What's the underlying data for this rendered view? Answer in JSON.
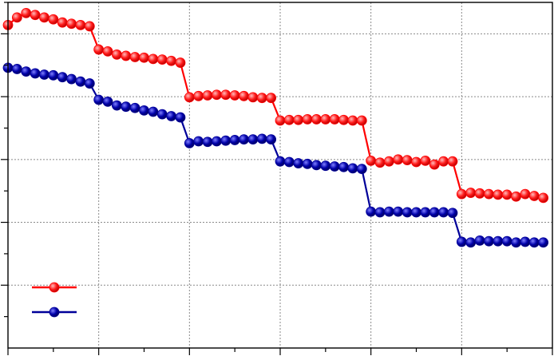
{
  "chart_data": {
    "type": "line",
    "title": "",
    "xlabel": "",
    "ylabel": "",
    "xlim": [
      0,
      60
    ],
    "ylim": [
      0,
      5.5
    ],
    "grid": true,
    "legend_position": "bottom-left",
    "x": [
      0,
      1,
      2,
      3,
      4,
      5,
      6,
      7,
      8,
      9,
      10,
      11,
      12,
      13,
      14,
      15,
      16,
      17,
      18,
      19,
      20,
      21,
      22,
      23,
      24,
      25,
      26,
      27,
      28,
      29,
      30,
      31,
      32,
      33,
      34,
      35,
      36,
      37,
      38,
      39,
      40,
      41,
      42,
      43,
      44,
      45,
      46,
      47,
      48,
      49,
      50,
      51,
      52,
      53,
      54,
      55,
      56,
      57,
      58,
      59
    ],
    "series": [
      {
        "name": "",
        "color": "#ff0000",
        "values": [
          5.14,
          5.26,
          5.33,
          5.3,
          5.26,
          5.23,
          5.18,
          5.16,
          5.14,
          5.12,
          4.75,
          4.72,
          4.67,
          4.65,
          4.63,
          4.62,
          4.6,
          4.59,
          4.57,
          4.54,
          3.99,
          4.01,
          4.02,
          4.03,
          4.03,
          4.02,
          4.01,
          3.99,
          3.98,
          3.98,
          3.62,
          3.63,
          3.63,
          3.64,
          3.64,
          3.64,
          3.64,
          3.63,
          3.62,
          3.62,
          2.98,
          2.95,
          2.97,
          3.0,
          2.99,
          2.96,
          2.98,
          2.92,
          2.97,
          2.97,
          2.45,
          2.47,
          2.46,
          2.45,
          2.44,
          2.44,
          2.41,
          2.45,
          2.42,
          2.39
        ]
      },
      {
        "name": "",
        "color": "#000099",
        "values": [
          4.46,
          4.44,
          4.4,
          4.37,
          4.35,
          4.34,
          4.31,
          4.28,
          4.24,
          4.21,
          3.95,
          3.92,
          3.86,
          3.84,
          3.82,
          3.78,
          3.76,
          3.72,
          3.69,
          3.67,
          3.26,
          3.29,
          3.28,
          3.29,
          3.3,
          3.31,
          3.32,
          3.32,
          3.33,
          3.32,
          2.97,
          2.96,
          2.94,
          2.93,
          2.91,
          2.9,
          2.89,
          2.88,
          2.86,
          2.85,
          2.17,
          2.16,
          2.17,
          2.17,
          2.16,
          2.16,
          2.16,
          2.16,
          2.16,
          2.15,
          1.69,
          1.68,
          1.71,
          1.7,
          1.7,
          1.7,
          1.68,
          1.69,
          1.68,
          1.68
        ]
      }
    ]
  }
}
